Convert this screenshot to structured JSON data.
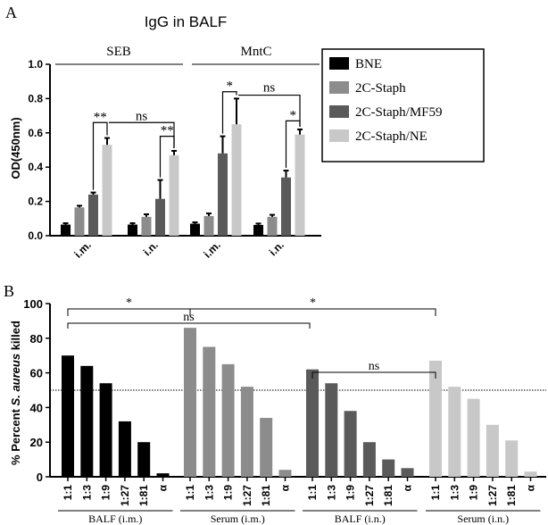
{
  "chart_data": [
    {
      "panel": "A",
      "type": "bar",
      "title": "IgG in BALF",
      "ylabel": "OD(450nm)",
      "ylim": [
        0,
        1.0
      ],
      "yticks": [
        "0.0",
        "0.2",
        "0.4",
        "0.6",
        "0.8",
        "1.0"
      ],
      "groups": [
        "SEB",
        "MntC"
      ],
      "categories": [
        "i.m.",
        "i.n.",
        "i.m.",
        "i.n."
      ],
      "series": [
        {
          "name": "BNE",
          "color": "#000000",
          "values": [
            0.065,
            0.065,
            0.07,
            0.063
          ],
          "errors": [
            0.008,
            0.008,
            0.008,
            0.008
          ]
        },
        {
          "name": "2C-Staph",
          "color": "#8c8c8c",
          "values": [
            0.165,
            0.11,
            0.115,
            0.11
          ],
          "errors": [
            0.01,
            0.015,
            0.015,
            0.012
          ]
        },
        {
          "name": "2C-Staph/MF59",
          "color": "#5a5a5a",
          "values": [
            0.24,
            0.215,
            0.48,
            0.34
          ],
          "errors": [
            0.012,
            0.11,
            0.1,
            0.04
          ]
        },
        {
          "name": "2C-Staph/NE",
          "color": "#c8c8c8",
          "values": [
            0.53,
            0.47,
            0.65,
            0.59
          ],
          "errors": [
            0.04,
            0.025,
            0.15,
            0.03
          ]
        }
      ],
      "annotations": [
        "**",
        "ns",
        "**",
        "*",
        "ns",
        "*"
      ]
    },
    {
      "panel": "B",
      "type": "bar",
      "ylabel_prefix": "% Percent ",
      "ylabel_italic": "S. aureus",
      "ylabel_suffix": " killed",
      "ylim": [
        0,
        100
      ],
      "yticks": [
        "0",
        "20",
        "40",
        "60",
        "80",
        "100"
      ],
      "reference_line": 50,
      "tick_labels": [
        "1:1",
        "1:3",
        "1:9",
        "1:27",
        "1:81",
        "α"
      ],
      "series": [
        {
          "name": "BALF (i.m.)",
          "color": "#000000",
          "values": [
            70,
            64,
            54,
            32,
            20,
            2
          ]
        },
        {
          "name": "Serum (i.m.)",
          "color": "#8c8c8c",
          "values": [
            86,
            75,
            65,
            52,
            34,
            4
          ]
        },
        {
          "name": "BALF (i.n.)",
          "color": "#5a5a5a",
          "values": [
            62,
            54,
            38,
            20,
            10,
            5
          ]
        },
        {
          "name": "Serum (i.n.)",
          "color": "#c8c8c8",
          "values": [
            67,
            52,
            45,
            30,
            21,
            3
          ]
        }
      ],
      "annotations": [
        "*",
        "*",
        "ns",
        "ns"
      ]
    }
  ],
  "labels": {
    "panel_a": "A",
    "panel_b": "B"
  }
}
